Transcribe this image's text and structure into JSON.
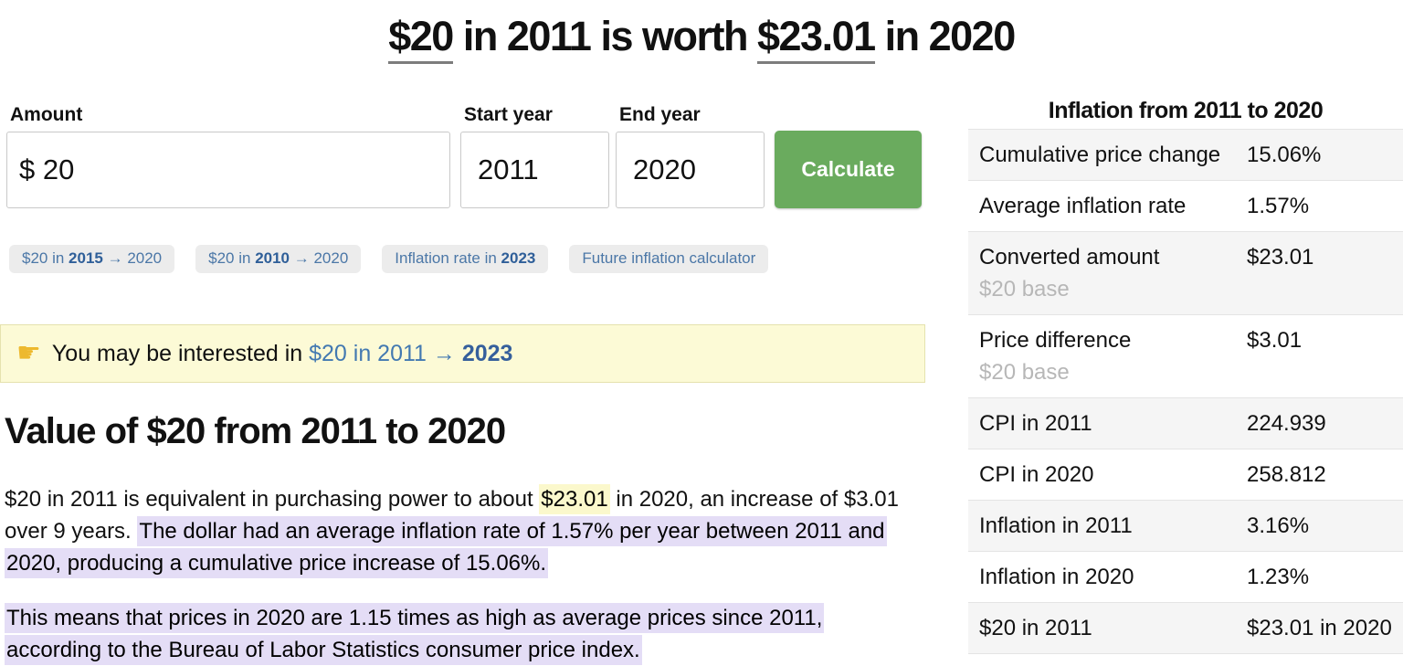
{
  "title": {
    "amount_link": "$20",
    "mid1": " in 2011 is worth ",
    "worth_link": "$23.01",
    "mid2": " in 2020"
  },
  "form": {
    "amount_label": "Amount",
    "amount_value": "$ 20",
    "start_label": "Start year",
    "start_value": "2011",
    "end_label": "End year",
    "end_value": "2020",
    "calculate_label": "Calculate"
  },
  "chips": [
    {
      "pre": "$20 in ",
      "bold": "2015",
      "post": " → 2020"
    },
    {
      "pre": "$20 in ",
      "bold": "2010",
      "post": " → 2020"
    },
    {
      "pre": "Inflation rate in ",
      "bold": "2023",
      "post": ""
    },
    {
      "pre": "Future inflation calculator",
      "bold": "",
      "post": ""
    }
  ],
  "callout": {
    "icon": "☛",
    "text": "You may be interested in ",
    "link_plain": "$20 in 2011 → ",
    "link_bold": "2023"
  },
  "main": {
    "heading": "Value of $20 from 2011 to 2020",
    "p1_plain1": "$20 in 2011 is equivalent in purchasing power to about ",
    "p1_yellow": "$23.01",
    "p1_plain2": " in 2020, an increase of $3.01 over 9 years. ",
    "p1_purple": "The dollar had an average inflation rate of 1.57% per year between 2011 and 2020, producing a cumulative price increase of 15.06%.",
    "p2_purple": "This means that prices in 2020 are 1.15 times as high as average prices since 2011, according to the Bureau of Labor Statistics consumer price index."
  },
  "table": {
    "title": "Inflation from 2011 to 2020",
    "rows": [
      {
        "label": "Cumulative price change",
        "sub": "",
        "value": "15.06%"
      },
      {
        "label": "Average inflation rate",
        "sub": "",
        "value": "1.57%"
      },
      {
        "label": "Converted amount",
        "sub": "$20 base",
        "value": "$23.01"
      },
      {
        "label": "Price difference",
        "sub": "$20 base",
        "value": "$3.01"
      },
      {
        "label": "CPI in 2011",
        "sub": "",
        "value": "224.939"
      },
      {
        "label": "CPI in 2020",
        "sub": "",
        "value": "258.812"
      },
      {
        "label": "Inflation in 2011",
        "sub": "",
        "value": "3.16%"
      },
      {
        "label": "Inflation in 2020",
        "sub": "",
        "value": "1.23%"
      },
      {
        "label": "$20 in 2011",
        "sub": "",
        "value": "$23.01 in 2020"
      }
    ]
  },
  "colors": {
    "accent_green": "#6aab5e",
    "link_blue": "#4379b1",
    "link_blue_bold": "#355f9c",
    "chip_bg": "#ececec",
    "callout_bg": "#fcfad6",
    "callout_border": "#e5e2ae",
    "highlight_yellow": "#fbf8cc",
    "highlight_purple": "#e4ddf6",
    "table_row_alt": "#f5f5f5",
    "sub_label_gray": "#b7b7b7"
  }
}
